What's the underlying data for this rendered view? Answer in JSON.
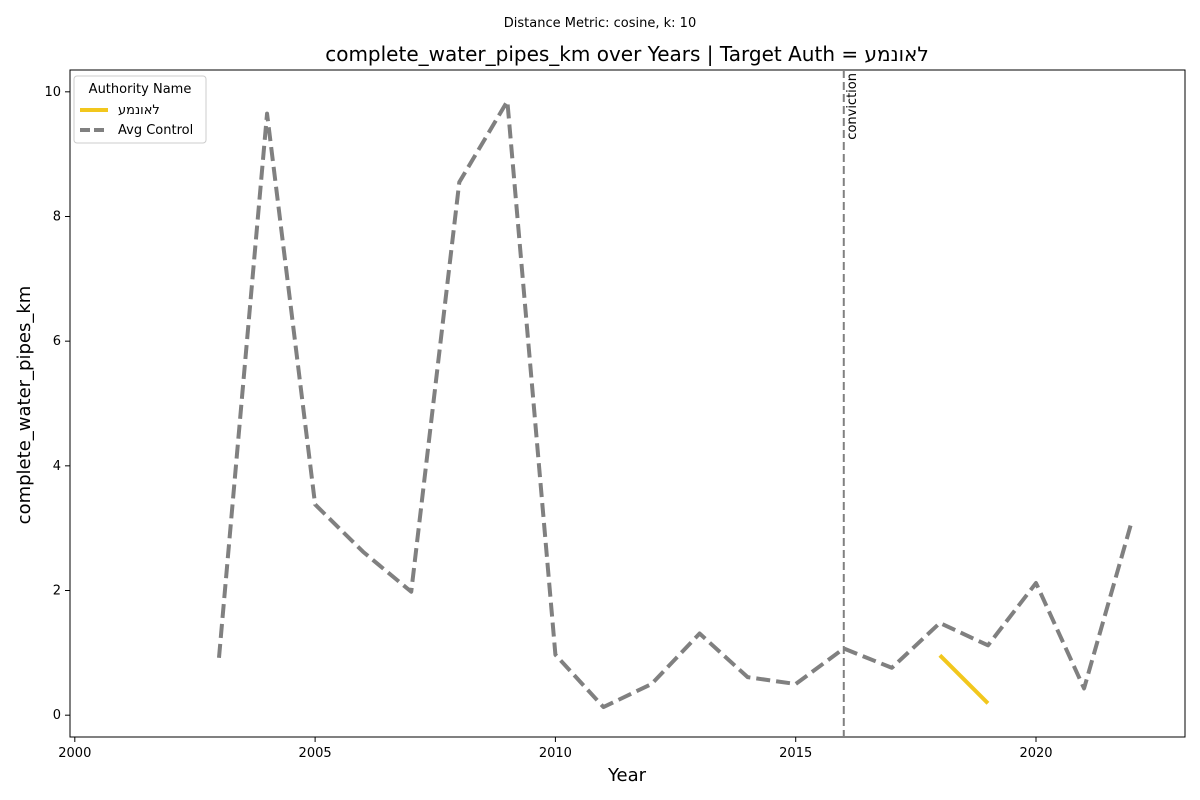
{
  "suptitle": "Distance Metric: cosine, k: 10",
  "chart_data": {
    "type": "line",
    "title": "complete_water_pipes_km over Years | Target Auth = לאונמע",
    "xlabel": "Year",
    "ylabel": "complete_water_pipes_km",
    "xlim": [
      1999.9,
      2023.1
    ],
    "ylim": [
      -0.35,
      10.35
    ],
    "xticks": [
      2000,
      2005,
      2010,
      2015,
      2020
    ],
    "yticks": [
      0,
      2,
      4,
      6,
      8,
      10
    ],
    "legend": {
      "title": "Authority Name",
      "placement": "top-left"
    },
    "series": [
      {
        "name": "לאונמע",
        "color": "#f2c71d",
        "style": "solid",
        "x": [
          2018,
          2019
        ],
        "y": [
          0.96,
          0.19
        ]
      },
      {
        "name": "Avg Control",
        "color": "#808080",
        "style": "dashed",
        "x": [
          2003,
          2004,
          2005,
          2006,
          2007,
          2008,
          2009,
          2010,
          2011,
          2012,
          2013,
          2014,
          2015,
          2016,
          2017,
          2018,
          2019,
          2020,
          2021,
          2022
        ],
        "y": [
          0.92,
          9.65,
          3.38,
          2.62,
          1.98,
          8.55,
          9.85,
          0.97,
          0.13,
          0.5,
          1.31,
          0.61,
          0.5,
          1.07,
          0.76,
          1.48,
          1.12,
          2.12,
          0.43,
          3.13
        ]
      }
    ],
    "annotations": [
      {
        "x": 2016,
        "label": "conviction",
        "color": "#808080"
      }
    ]
  }
}
